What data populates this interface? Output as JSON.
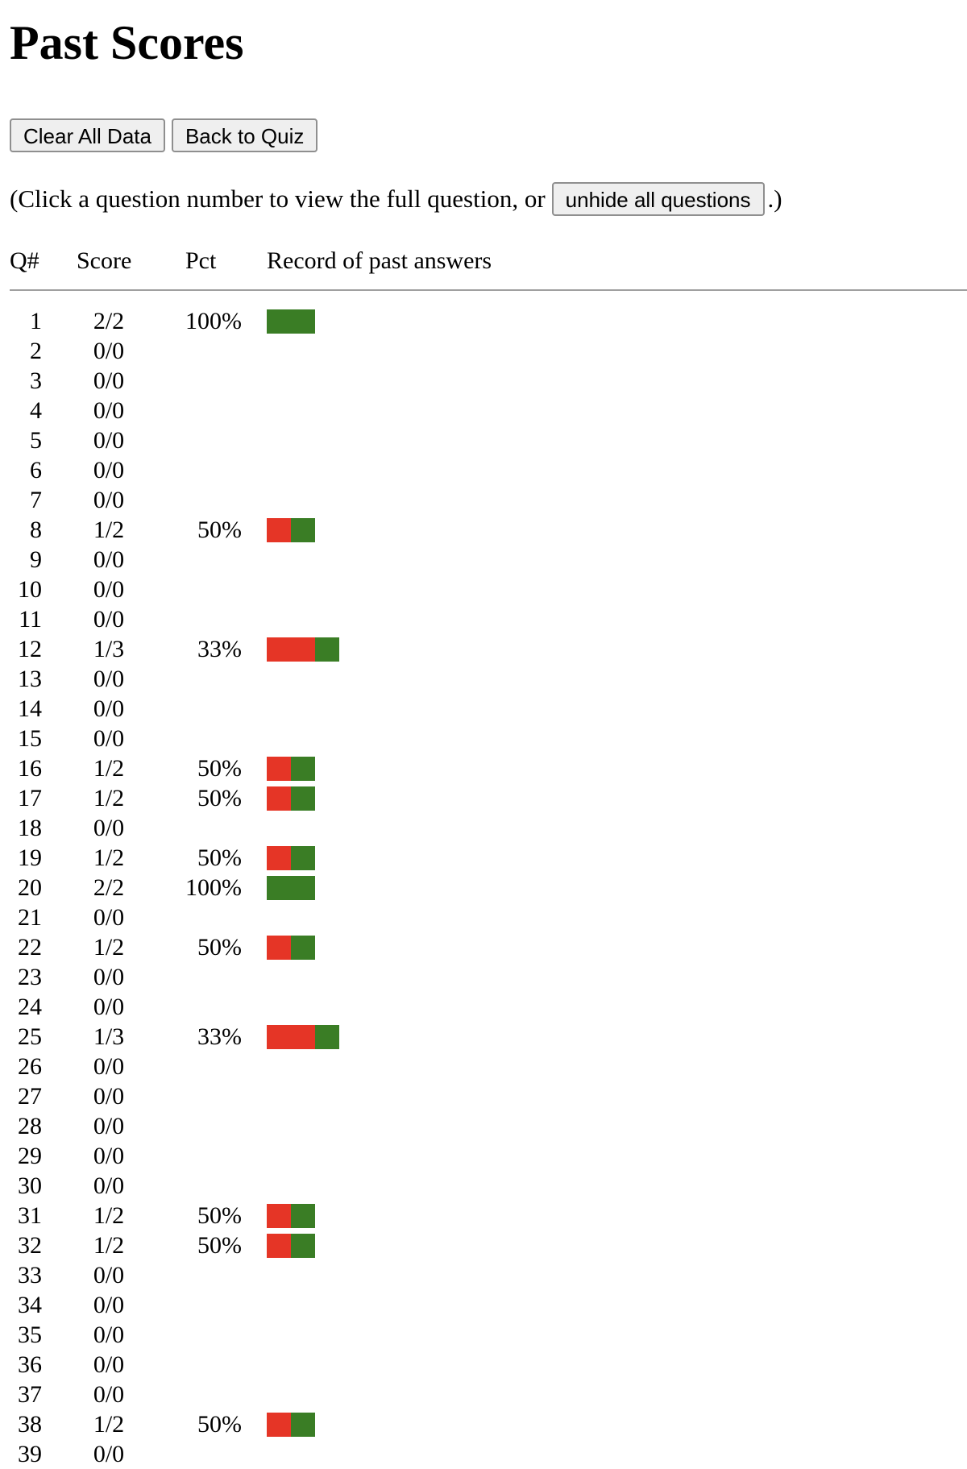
{
  "page_title": "Past Scores",
  "buttons": {
    "clear": "Clear All Data",
    "back": "Back to Quiz",
    "unhide": "unhide all questions"
  },
  "hint": {
    "before": "(Click a question number to view the full question, or",
    "after": ".)"
  },
  "table": {
    "headers": {
      "q": "Q#",
      "score": "Score",
      "pct": "Pct",
      "record": "Record of past answers"
    },
    "rows": [
      {
        "q": "1",
        "score": "2/2",
        "pct": "100%",
        "record": [
          "right",
          "right"
        ]
      },
      {
        "q": "2",
        "score": "0/0",
        "pct": "",
        "record": []
      },
      {
        "q": "3",
        "score": "0/0",
        "pct": "",
        "record": []
      },
      {
        "q": "4",
        "score": "0/0",
        "pct": "",
        "record": []
      },
      {
        "q": "5",
        "score": "0/0",
        "pct": "",
        "record": []
      },
      {
        "q": "6",
        "score": "0/0",
        "pct": "",
        "record": []
      },
      {
        "q": "7",
        "score": "0/0",
        "pct": "",
        "record": []
      },
      {
        "q": "8",
        "score": "1/2",
        "pct": "50%",
        "record": [
          "wrong",
          "right"
        ]
      },
      {
        "q": "9",
        "score": "0/0",
        "pct": "",
        "record": []
      },
      {
        "q": "10",
        "score": "0/0",
        "pct": "",
        "record": []
      },
      {
        "q": "11",
        "score": "0/0",
        "pct": "",
        "record": []
      },
      {
        "q": "12",
        "score": "1/3",
        "pct": "33%",
        "record": [
          "wrong",
          "wrong",
          "right"
        ]
      },
      {
        "q": "13",
        "score": "0/0",
        "pct": "",
        "record": []
      },
      {
        "q": "14",
        "score": "0/0",
        "pct": "",
        "record": []
      },
      {
        "q": "15",
        "score": "0/0",
        "pct": "",
        "record": []
      },
      {
        "q": "16",
        "score": "1/2",
        "pct": "50%",
        "record": [
          "wrong",
          "right"
        ]
      },
      {
        "q": "17",
        "score": "1/2",
        "pct": "50%",
        "record": [
          "wrong",
          "right"
        ]
      },
      {
        "q": "18",
        "score": "0/0",
        "pct": "",
        "record": []
      },
      {
        "q": "19",
        "score": "1/2",
        "pct": "50%",
        "record": [
          "wrong",
          "right"
        ]
      },
      {
        "q": "20",
        "score": "2/2",
        "pct": "100%",
        "record": [
          "right",
          "right"
        ]
      },
      {
        "q": "21",
        "score": "0/0",
        "pct": "",
        "record": []
      },
      {
        "q": "22",
        "score": "1/2",
        "pct": "50%",
        "record": [
          "wrong",
          "right"
        ]
      },
      {
        "q": "23",
        "score": "0/0",
        "pct": "",
        "record": []
      },
      {
        "q": "24",
        "score": "0/0",
        "pct": "",
        "record": []
      },
      {
        "q": "25",
        "score": "1/3",
        "pct": "33%",
        "record": [
          "wrong",
          "wrong",
          "right"
        ]
      },
      {
        "q": "26",
        "score": "0/0",
        "pct": "",
        "record": []
      },
      {
        "q": "27",
        "score": "0/0",
        "pct": "",
        "record": []
      },
      {
        "q": "28",
        "score": "0/0",
        "pct": "",
        "record": []
      },
      {
        "q": "29",
        "score": "0/0",
        "pct": "",
        "record": []
      },
      {
        "q": "30",
        "score": "0/0",
        "pct": "",
        "record": []
      },
      {
        "q": "31",
        "score": "1/2",
        "pct": "50%",
        "record": [
          "wrong",
          "right"
        ]
      },
      {
        "q": "32",
        "score": "1/2",
        "pct": "50%",
        "record": [
          "wrong",
          "right"
        ]
      },
      {
        "q": "33",
        "score": "0/0",
        "pct": "",
        "record": []
      },
      {
        "q": "34",
        "score": "0/0",
        "pct": "",
        "record": []
      },
      {
        "q": "35",
        "score": "0/0",
        "pct": "",
        "record": []
      },
      {
        "q": "36",
        "score": "0/0",
        "pct": "",
        "record": []
      },
      {
        "q": "37",
        "score": "0/0",
        "pct": "",
        "record": []
      },
      {
        "q": "38",
        "score": "1/2",
        "pct": "50%",
        "record": [
          "wrong",
          "right"
        ]
      },
      {
        "q": "39",
        "score": "0/0",
        "pct": "",
        "record": []
      }
    ]
  },
  "colors": {
    "wrong": "#e53526",
    "right": "#3a7d25"
  }
}
